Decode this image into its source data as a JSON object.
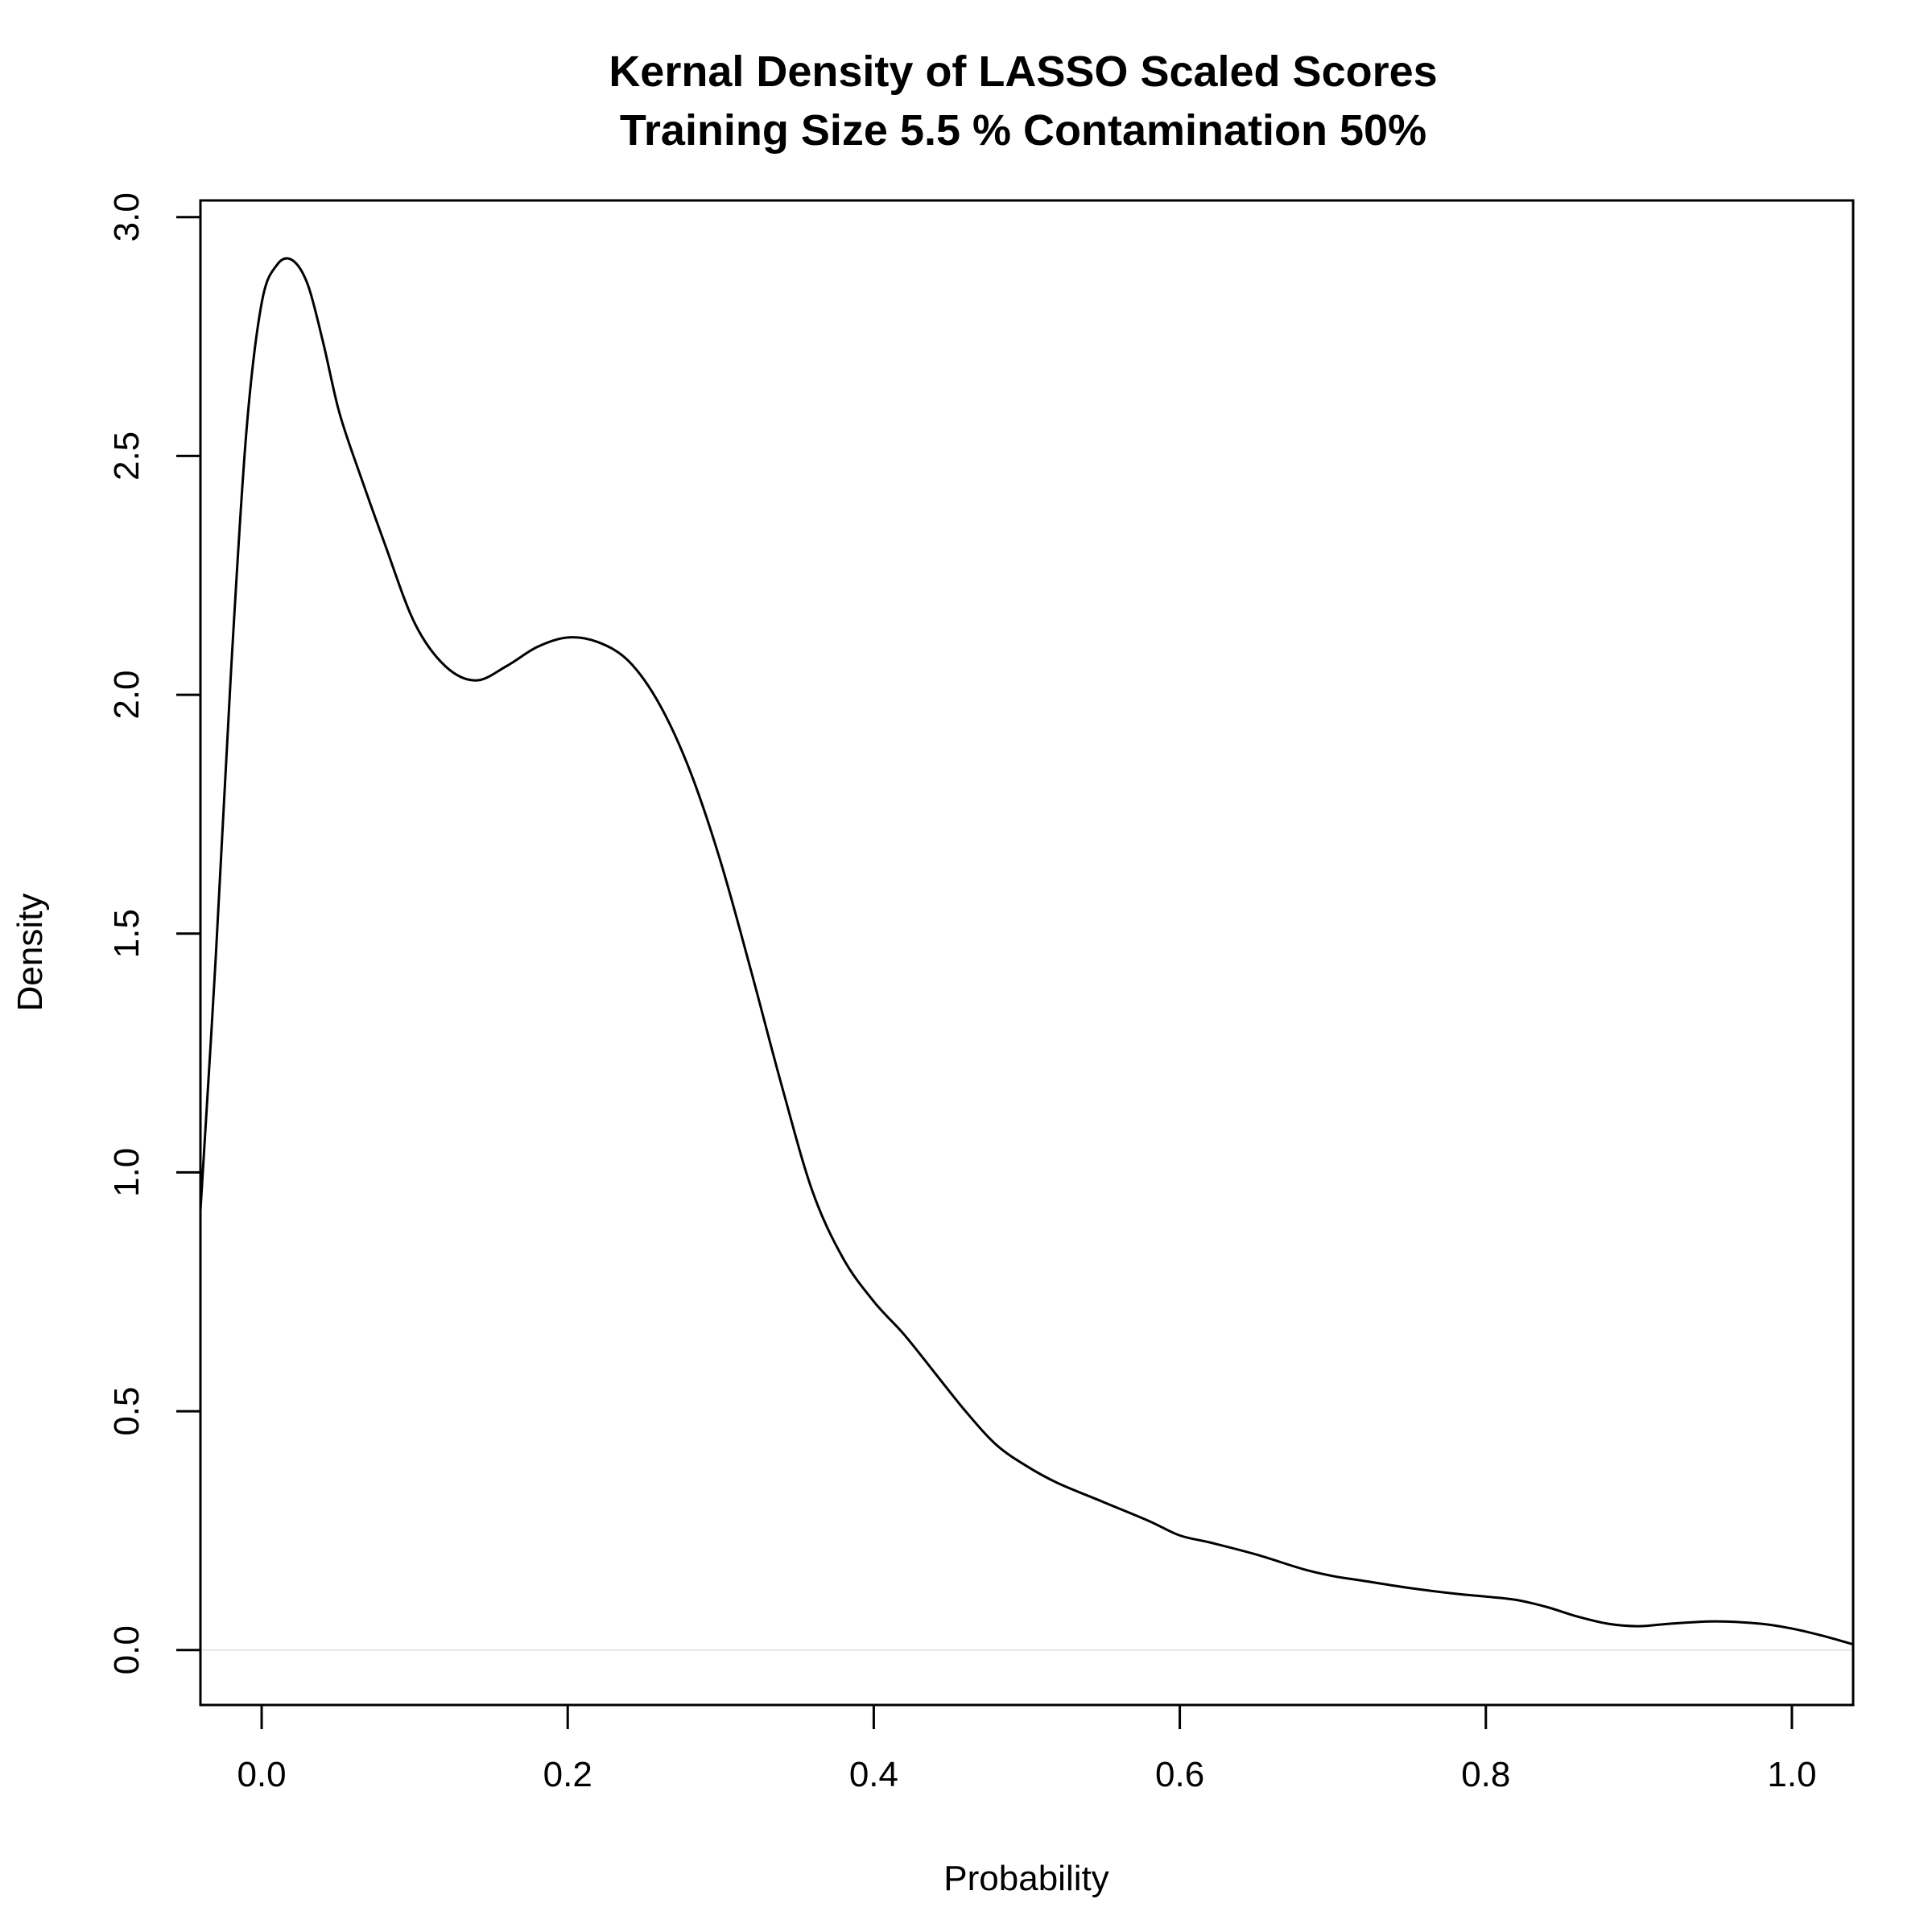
{
  "chart_data": {
    "type": "line",
    "title": "Kernal Density of LASSO Scaled Scores",
    "subtitle": "Training Size 5.5 % Contamination 50%",
    "xlabel": "Probability",
    "ylabel": "Density",
    "xlim": [
      -0.04,
      1.04
    ],
    "ylim": [
      -0.115,
      3.035
    ],
    "x_ticks": [
      0.0,
      0.2,
      0.4,
      0.6,
      0.8,
      1.0
    ],
    "x_tick_labels": [
      "0.0",
      "0.2",
      "0.4",
      "0.6",
      "0.8",
      "1.0"
    ],
    "y_ticks": [
      0.0,
      0.5,
      1.0,
      1.5,
      2.0,
      2.5,
      3.0
    ],
    "y_tick_labels": [
      "0.0",
      "0.5",
      "1.0",
      "1.5",
      "2.0",
      "2.5",
      "3.0"
    ],
    "grid": false,
    "baseline": 0,
    "series": [
      {
        "color": "#000000",
        "x": [
          -0.04,
          -0.03,
          -0.02,
          -0.01,
          0.0,
          0.01,
          0.02,
          0.03,
          0.04,
          0.05,
          0.06,
          0.08,
          0.1,
          0.12,
          0.14,
          0.16,
          0.18,
          0.2,
          0.22,
          0.24,
          0.26,
          0.28,
          0.3,
          0.32,
          0.34,
          0.36,
          0.38,
          0.4,
          0.42,
          0.44,
          0.46,
          0.48,
          0.5,
          0.52,
          0.55,
          0.58,
          0.6,
          0.62,
          0.65,
          0.68,
          0.7,
          0.72,
          0.75,
          0.78,
          0.8,
          0.82,
          0.84,
          0.86,
          0.88,
          0.9,
          0.92,
          0.95,
          0.98,
          1.0,
          1.02,
          1.04
        ],
        "y": [
          0.92,
          1.45,
          2.05,
          2.55,
          2.82,
          2.9,
          2.91,
          2.86,
          2.74,
          2.6,
          2.5,
          2.32,
          2.15,
          2.06,
          2.03,
          2.06,
          2.1,
          2.12,
          2.11,
          2.07,
          1.98,
          1.84,
          1.65,
          1.42,
          1.18,
          0.96,
          0.82,
          0.73,
          0.66,
          0.58,
          0.5,
          0.43,
          0.385,
          0.35,
          0.31,
          0.27,
          0.24,
          0.225,
          0.2,
          0.17,
          0.155,
          0.145,
          0.13,
          0.118,
          0.112,
          0.105,
          0.09,
          0.07,
          0.055,
          0.05,
          0.055,
          0.06,
          0.055,
          0.045,
          0.03,
          0.012
        ]
      }
    ]
  }
}
